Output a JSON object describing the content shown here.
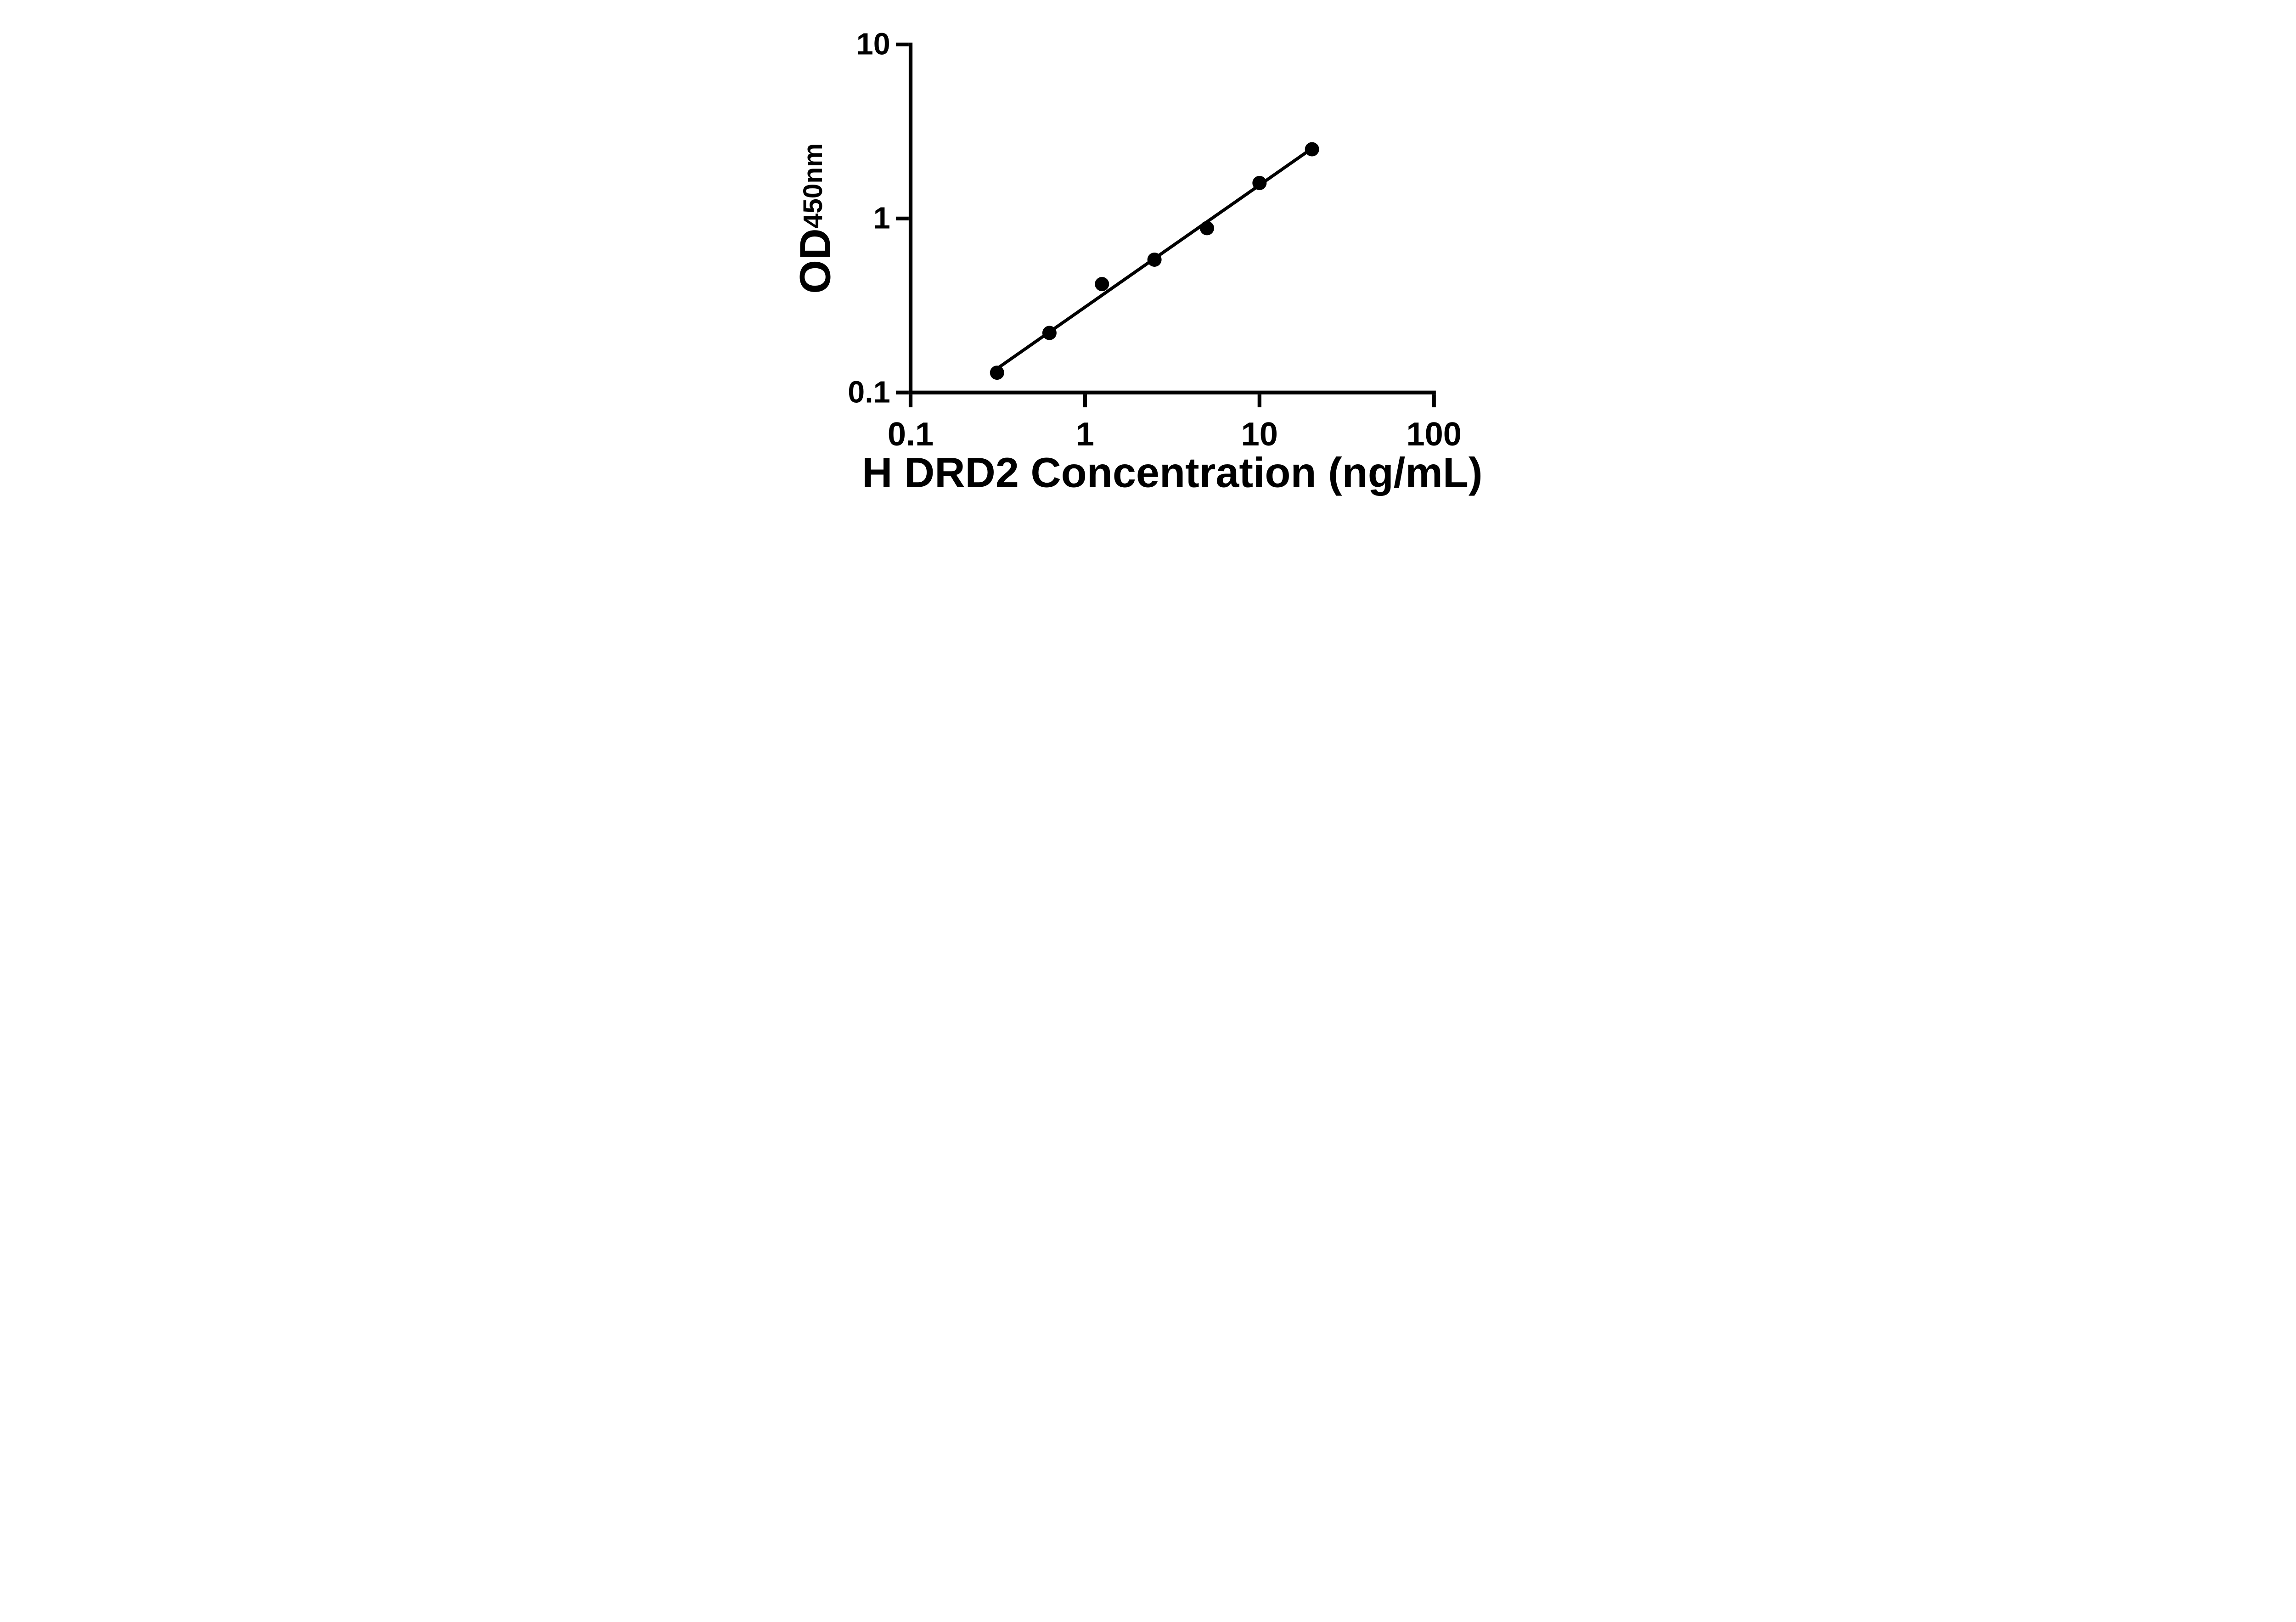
{
  "chart_data": {
    "type": "scatter",
    "title": "",
    "xlabel": "H DRD2 Concentration (ng/mL)",
    "ylabel_main": "OD",
    "ylabel_sub": "450nm",
    "x_scale": "log",
    "y_scale": "log",
    "xlim": [
      0.1,
      100
    ],
    "ylim": [
      0.1,
      10
    ],
    "grid": "off",
    "legend": "none",
    "x_ticks": [
      {
        "value": 0.1,
        "label": "0.1"
      },
      {
        "value": 1,
        "label": "1"
      },
      {
        "value": 10,
        "label": "10"
      },
      {
        "value": 100,
        "label": "100"
      }
    ],
    "y_ticks": [
      {
        "value": 0.1,
        "label": "0.1"
      },
      {
        "value": 1,
        "label": "1"
      },
      {
        "value": 10,
        "label": "10"
      }
    ],
    "points": [
      {
        "x": 0.313,
        "y": 0.13
      },
      {
        "x": 0.625,
        "y": 0.22
      },
      {
        "x": 1.25,
        "y": 0.42
      },
      {
        "x": 2.5,
        "y": 0.58
      },
      {
        "x": 5,
        "y": 0.88
      },
      {
        "x": 10,
        "y": 1.6
      },
      {
        "x": 20,
        "y": 2.5
      }
    ],
    "fit_line": {
      "slope": 0.701,
      "intercept": -0.509,
      "x_start": 0.313,
      "x_end": 20
    },
    "marker": "filled-circle",
    "colors": {
      "axis": "#000000",
      "marker": "#000000",
      "line": "#000000",
      "background": "#ffffff"
    }
  }
}
